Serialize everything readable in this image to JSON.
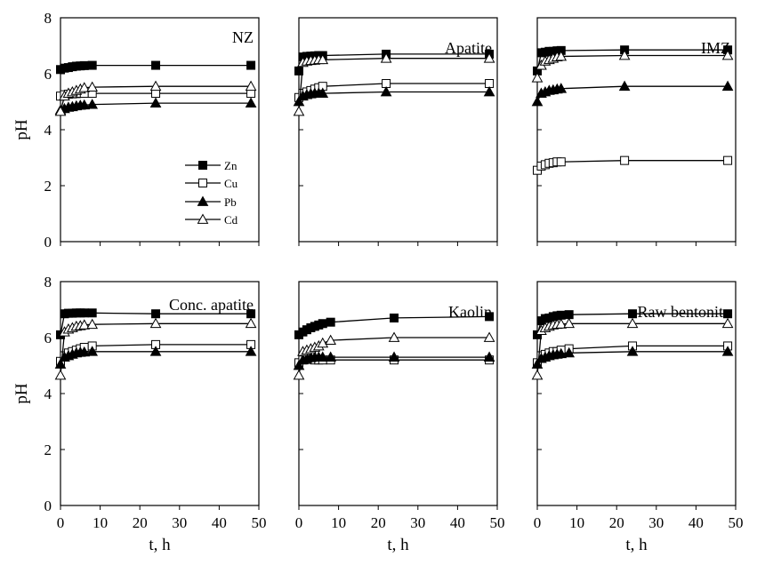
{
  "chart_data": {
    "type": "scatter",
    "xlabel": "t, h",
    "ylabel": "pH",
    "xlim": [
      0,
      50
    ],
    "ylim": [
      0,
      8
    ],
    "xticks": [
      0,
      10,
      20,
      30,
      40,
      50
    ],
    "yticks": [
      0,
      2,
      4,
      6,
      8
    ],
    "grid": false,
    "legend": {
      "placement": "center-left",
      "entries": [
        {
          "name": "Zn",
          "marker": "square",
          "fill": "#000000"
        },
        {
          "name": "Cu",
          "marker": "square",
          "fill": "#ffffff"
        },
        {
          "name": "Pb",
          "marker": "triangle",
          "fill": "#000000"
        },
        {
          "name": "Cd",
          "marker": "triangle",
          "fill": "#ffffff"
        }
      ]
    },
    "panels": [
      {
        "title": "NZ",
        "series": [
          {
            "name": "Zn",
            "x": [
              0,
              1,
              2,
              3,
              4,
              5,
              6,
              8,
              24,
              48
            ],
            "y": [
              6.15,
              6.2,
              6.22,
              6.25,
              6.27,
              6.28,
              6.29,
              6.3,
              6.3,
              6.3
            ]
          },
          {
            "name": "Cu",
            "x": [
              0,
              1,
              2,
              3,
              4,
              5,
              6,
              8,
              24,
              48
            ],
            "y": [
              5.2,
              5.25,
              5.27,
              5.28,
              5.29,
              5.3,
              5.3,
              5.3,
              5.3,
              5.3
            ]
          },
          {
            "name": "Pb",
            "x": [
              0,
              1,
              2,
              3,
              4,
              5,
              6,
              8,
              24,
              48
            ],
            "y": [
              4.7,
              4.75,
              4.8,
              4.82,
              4.85,
              4.87,
              4.88,
              4.9,
              4.95,
              4.95
            ]
          },
          {
            "name": "Cd",
            "x": [
              0,
              1,
              2,
              3,
              4,
              5,
              6,
              8,
              24,
              48
            ],
            "y": [
              4.65,
              5.2,
              5.3,
              5.35,
              5.4,
              5.45,
              5.5,
              5.52,
              5.55,
              5.55
            ]
          }
        ]
      },
      {
        "title": "Apatite",
        "series": [
          {
            "name": "Zn",
            "x": [
              0,
              1,
              2,
              3,
              4,
              5,
              6,
              22,
              48
            ],
            "y": [
              6.1,
              6.6,
              6.62,
              6.63,
              6.64,
              6.65,
              6.65,
              6.7,
              6.7
            ]
          },
          {
            "name": "Cu",
            "x": [
              0,
              1,
              2,
              3,
              4,
              5,
              6,
              22,
              48
            ],
            "y": [
              5.15,
              5.3,
              5.35,
              5.4,
              5.45,
              5.5,
              5.55,
              5.65,
              5.65
            ]
          },
          {
            "name": "Pb",
            "x": [
              0,
              1,
              2,
              3,
              4,
              5,
              6,
              22,
              48
            ],
            "y": [
              5.0,
              5.2,
              5.25,
              5.28,
              5.3,
              5.3,
              5.3,
              5.35,
              5.35
            ]
          },
          {
            "name": "Cd",
            "x": [
              0,
              1,
              2,
              3,
              4,
              5,
              6,
              22,
              48
            ],
            "y": [
              4.65,
              6.4,
              6.45,
              6.47,
              6.48,
              6.5,
              6.5,
              6.55,
              6.55
            ]
          }
        ]
      },
      {
        "title": "IMZ",
        "series": [
          {
            "name": "Zn",
            "x": [
              0,
              1,
              2,
              3,
              4,
              5,
              6,
              22,
              48
            ],
            "y": [
              6.1,
              6.75,
              6.77,
              6.8,
              6.8,
              6.82,
              6.83,
              6.85,
              6.85
            ]
          },
          {
            "name": "Cu",
            "x": [
              0,
              1,
              2,
              3,
              4,
              5,
              6,
              22,
              48
            ],
            "y": [
              2.55,
              2.7,
              2.75,
              2.8,
              2.82,
              2.85,
              2.85,
              2.9,
              2.9
            ]
          },
          {
            "name": "Pb",
            "x": [
              0,
              1,
              2,
              3,
              4,
              5,
              6,
              22,
              48
            ],
            "y": [
              5.0,
              5.3,
              5.35,
              5.4,
              5.42,
              5.45,
              5.47,
              5.55,
              5.55
            ]
          },
          {
            "name": "Cd",
            "x": [
              0,
              1,
              2,
              3,
              4,
              5,
              6,
              22,
              48
            ],
            "y": [
              5.85,
              6.3,
              6.45,
              6.5,
              6.55,
              6.6,
              6.62,
              6.65,
              6.65
            ]
          }
        ]
      },
      {
        "title": "Conc. apatite",
        "series": [
          {
            "name": "Zn",
            "x": [
              0,
              1,
              2,
              3,
              4,
              5,
              6,
              8,
              24,
              48
            ],
            "y": [
              6.1,
              6.85,
              6.87,
              6.87,
              6.88,
              6.88,
              6.88,
              6.88,
              6.85,
              6.85
            ]
          },
          {
            "name": "Cu",
            "x": [
              0,
              1,
              2,
              3,
              4,
              5,
              6,
              8,
              24,
              48
            ],
            "y": [
              5.15,
              5.35,
              5.45,
              5.5,
              5.55,
              5.6,
              5.65,
              5.7,
              5.75,
              5.75
            ]
          },
          {
            "name": "Pb",
            "x": [
              0,
              1,
              2,
              3,
              4,
              5,
              6,
              8,
              24,
              48
            ],
            "y": [
              5.05,
              5.3,
              5.35,
              5.4,
              5.45,
              5.47,
              5.48,
              5.5,
              5.5,
              5.5
            ]
          },
          {
            "name": "Cd",
            "x": [
              0,
              1,
              2,
              3,
              4,
              5,
              6,
              8,
              24,
              48
            ],
            "y": [
              4.65,
              6.2,
              6.3,
              6.35,
              6.4,
              6.42,
              6.45,
              6.47,
              6.5,
              6.5
            ]
          }
        ]
      },
      {
        "title": "Kaolin",
        "series": [
          {
            "name": "Zn",
            "x": [
              0,
              1,
              2,
              3,
              4,
              5,
              6,
              8,
              24,
              48
            ],
            "y": [
              6.1,
              6.2,
              6.28,
              6.35,
              6.4,
              6.45,
              6.5,
              6.55,
              6.7,
              6.75
            ]
          },
          {
            "name": "Cu",
            "x": [
              0,
              1,
              2,
              3,
              4,
              5,
              6,
              8,
              24,
              48
            ],
            "y": [
              5.1,
              5.2,
              5.22,
              5.22,
              5.2,
              5.2,
              5.2,
              5.2,
              5.2,
              5.2
            ]
          },
          {
            "name": "Pb",
            "x": [
              0,
              1,
              2,
              3,
              4,
              5,
              6,
              8,
              24,
              48
            ],
            "y": [
              5.0,
              5.2,
              5.25,
              5.28,
              5.3,
              5.3,
              5.3,
              5.3,
              5.3,
              5.3
            ]
          },
          {
            "name": "Cd",
            "x": [
              0,
              1,
              2,
              3,
              4,
              5,
              6,
              8,
              24,
              48
            ],
            "y": [
              4.65,
              5.5,
              5.55,
              5.6,
              5.65,
              5.7,
              5.8,
              5.9,
              6.0,
              6.0
            ]
          }
        ]
      },
      {
        "title": "Raw bentonite",
        "series": [
          {
            "name": "Zn",
            "x": [
              0,
              1,
              2,
              3,
              4,
              5,
              6,
              8,
              24,
              48
            ],
            "y": [
              6.1,
              6.6,
              6.68,
              6.7,
              6.75,
              6.78,
              6.8,
              6.82,
              6.85,
              6.85
            ]
          },
          {
            "name": "Cu",
            "x": [
              0,
              1,
              2,
              3,
              4,
              5,
              6,
              8,
              24,
              48
            ],
            "y": [
              5.1,
              5.35,
              5.4,
              5.45,
              5.5,
              5.5,
              5.55,
              5.6,
              5.7,
              5.7
            ]
          },
          {
            "name": "Pb",
            "x": [
              0,
              1,
              2,
              3,
              4,
              5,
              6,
              8,
              24,
              48
            ],
            "y": [
              5.05,
              5.25,
              5.3,
              5.35,
              5.38,
              5.4,
              5.42,
              5.45,
              5.5,
              5.5
            ]
          },
          {
            "name": "Cd",
            "x": [
              0,
              1,
              2,
              3,
              4,
              5,
              6,
              8,
              24,
              48
            ],
            "y": [
              4.65,
              6.25,
              6.35,
              6.4,
              6.45,
              6.47,
              6.48,
              6.5,
              6.5,
              6.5
            ]
          }
        ]
      }
    ]
  }
}
